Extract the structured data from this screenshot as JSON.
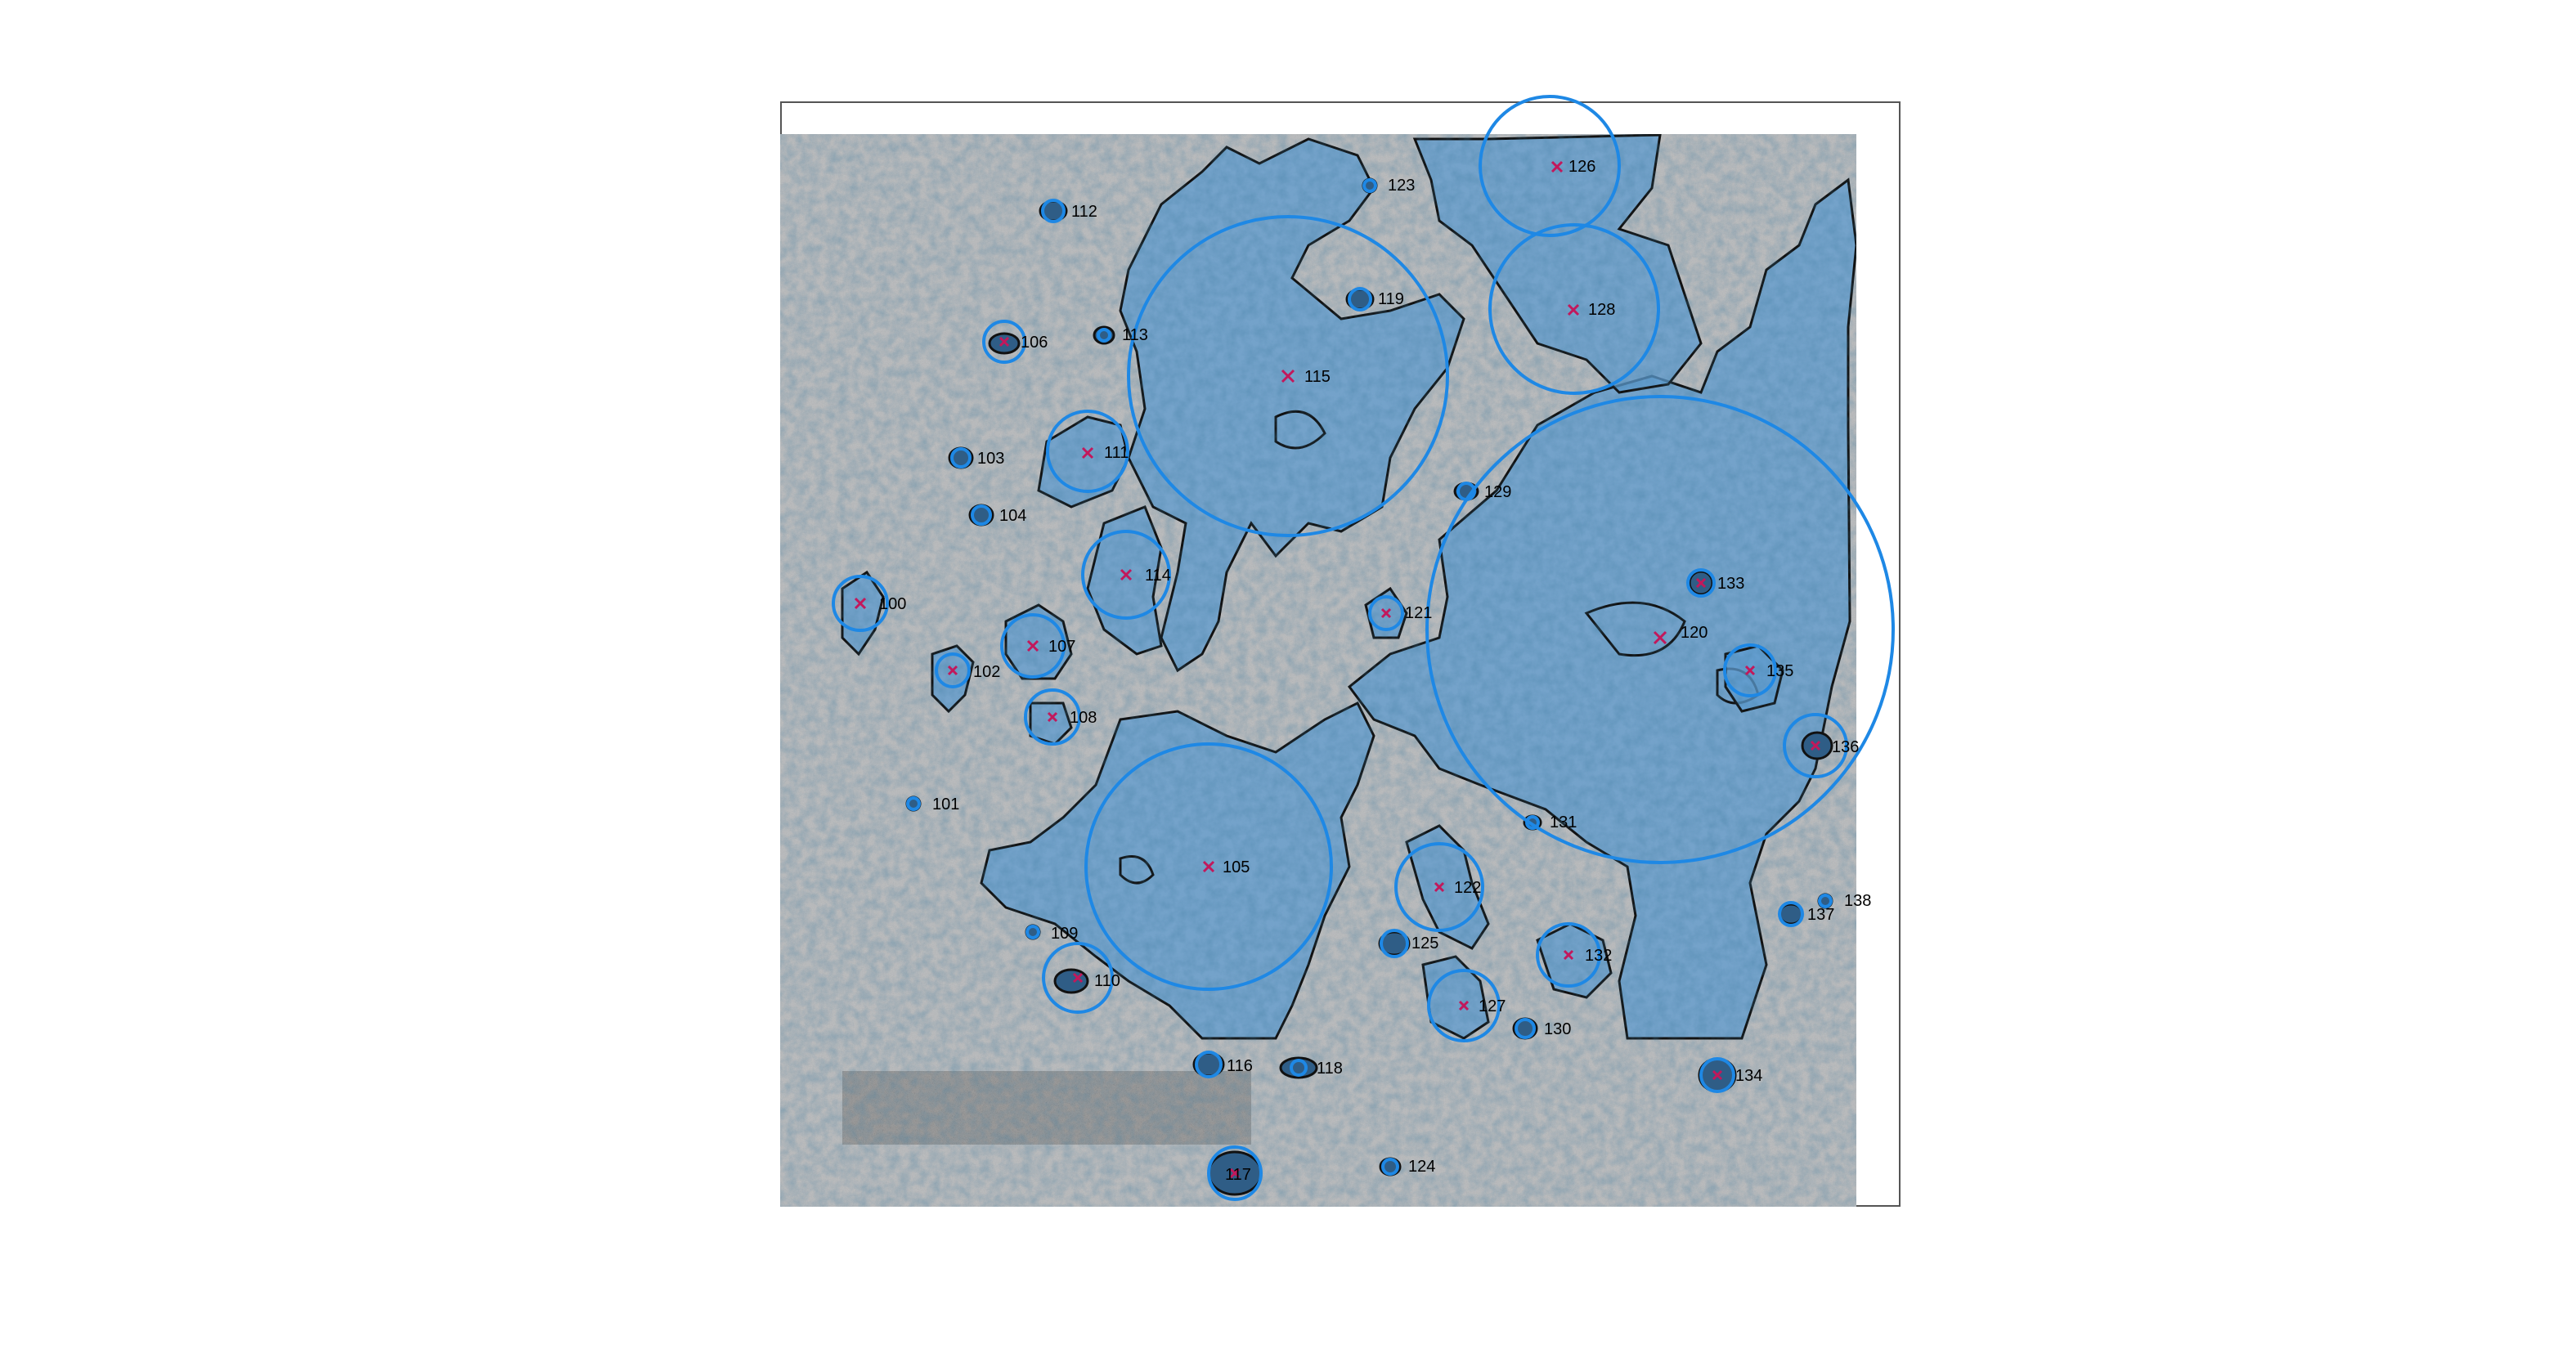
{
  "image": {
    "description": "Microscopy image with segmented particle regions overlaid in translucent blue, black outlines, blue equivalent-circles and red x centroid markers with numeric labels",
    "colors": {
      "background": "#ffffff",
      "frame": "#555555",
      "micrograph": "#b7b9bb",
      "overlay": "#2f83c7",
      "circle": "#1e88e5",
      "centroid": "#c2185b",
      "outline": "#111111"
    }
  },
  "particles": [
    {
      "id": "100",
      "label": "100"
    },
    {
      "id": "101",
      "label": "101"
    },
    {
      "id": "102",
      "label": "102"
    },
    {
      "id": "103",
      "label": "103"
    },
    {
      "id": "104",
      "label": "104"
    },
    {
      "id": "105",
      "label": "105"
    },
    {
      "id": "106",
      "label": "106"
    },
    {
      "id": "107",
      "label": "107"
    },
    {
      "id": "108",
      "label": "108"
    },
    {
      "id": "109",
      "label": "109"
    },
    {
      "id": "110",
      "label": "110"
    },
    {
      "id": "111",
      "label": "111"
    },
    {
      "id": "112",
      "label": "112"
    },
    {
      "id": "113",
      "label": "113"
    },
    {
      "id": "114",
      "label": "114"
    },
    {
      "id": "115",
      "label": "115"
    },
    {
      "id": "116",
      "label": "116"
    },
    {
      "id": "118",
      "label": "118"
    },
    {
      "id": "119",
      "label": "119"
    },
    {
      "id": "120",
      "label": "120"
    },
    {
      "id": "121",
      "label": "121"
    },
    {
      "id": "122",
      "label": "122"
    },
    {
      "id": "123",
      "label": "123"
    },
    {
      "id": "124",
      "label": "124"
    },
    {
      "id": "125",
      "label": "125"
    },
    {
      "id": "126",
      "label": "126"
    },
    {
      "id": "127",
      "label": "127"
    },
    {
      "id": "128",
      "label": "128"
    },
    {
      "id": "129",
      "label": "129"
    },
    {
      "id": "130",
      "label": "130"
    },
    {
      "id": "131",
      "label": "131"
    },
    {
      "id": "132",
      "label": "132"
    },
    {
      "id": "133",
      "label": "133"
    },
    {
      "id": "134",
      "label": "134"
    },
    {
      "id": "135",
      "label": "135"
    },
    {
      "id": "136",
      "label": "136"
    },
    {
      "id": "137",
      "label": "137"
    },
    {
      "id": "138",
      "label": "138"
    },
    {
      "id": "117",
      "label": "117"
    }
  ]
}
